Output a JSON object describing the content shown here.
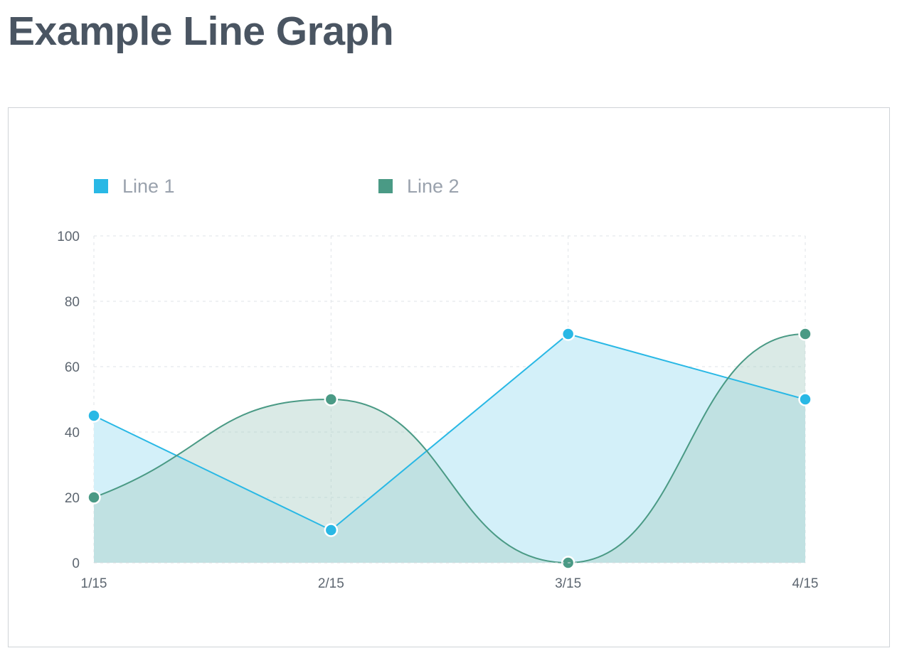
{
  "page": {
    "title": "Example Line Graph"
  },
  "chart_data": {
    "type": "line",
    "title": "",
    "xlabel": "",
    "ylabel": "",
    "categories": [
      "1/15",
      "2/15",
      "3/15",
      "4/15"
    ],
    "ylim": [
      0,
      100
    ],
    "y_ticks": [
      0,
      20,
      40,
      60,
      80,
      100
    ],
    "grid": true,
    "grid_style": "dashed",
    "legend": "top-left",
    "series": [
      {
        "name": "Line 1",
        "values": [
          45,
          10,
          70,
          50
        ],
        "color": "#29b8e5",
        "fill": "#d3f0f9",
        "curve": "linear",
        "area": true
      },
      {
        "name": "Line 2",
        "values": [
          20,
          50,
          0,
          70
        ],
        "color": "#4a9a85",
        "fill": "#a7cdc3",
        "curve": "smooth",
        "area": true
      }
    ]
  }
}
